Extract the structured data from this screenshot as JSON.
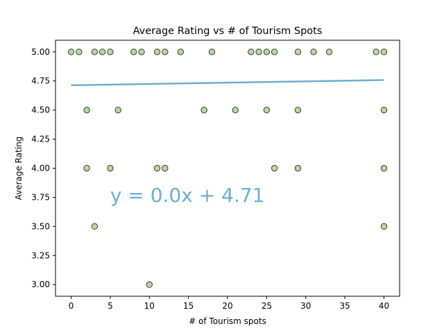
{
  "chart_data": {
    "type": "scatter",
    "title": "Average Rating vs # of Tourism Spots",
    "xlabel": "# of Tourism spots",
    "ylabel": "Average Rating",
    "xlim": [
      -2,
      42
    ],
    "ylim": [
      2.9,
      5.1
    ],
    "xticks": [
      0,
      5,
      10,
      15,
      20,
      25,
      30,
      35,
      40
    ],
    "yticks": [
      3.0,
      3.25,
      3.5,
      3.75,
      4.0,
      4.25,
      4.5,
      4.75,
      5.0
    ],
    "grid": false,
    "point_color": "#b5d99c",
    "point_edge_color": "#3a3a3a",
    "line_color": "#6baed6",
    "points": [
      {
        "x": 0,
        "y": 5.0
      },
      {
        "x": 1,
        "y": 5.0
      },
      {
        "x": 3,
        "y": 5.0
      },
      {
        "x": 4,
        "y": 5.0
      },
      {
        "x": 5,
        "y": 5.0
      },
      {
        "x": 8,
        "y": 5.0
      },
      {
        "x": 9,
        "y": 5.0
      },
      {
        "x": 11,
        "y": 5.0
      },
      {
        "x": 12,
        "y": 5.0
      },
      {
        "x": 14,
        "y": 5.0
      },
      {
        "x": 18,
        "y": 5.0
      },
      {
        "x": 23,
        "y": 5.0
      },
      {
        "x": 24,
        "y": 5.0
      },
      {
        "x": 25,
        "y": 5.0
      },
      {
        "x": 26,
        "y": 5.0
      },
      {
        "x": 29,
        "y": 5.0
      },
      {
        "x": 31,
        "y": 5.0
      },
      {
        "x": 33,
        "y": 5.0
      },
      {
        "x": 39,
        "y": 5.0
      },
      {
        "x": 40,
        "y": 5.0
      },
      {
        "x": 2,
        "y": 4.5
      },
      {
        "x": 6,
        "y": 4.5
      },
      {
        "x": 17,
        "y": 4.5
      },
      {
        "x": 21,
        "y": 4.5
      },
      {
        "x": 25,
        "y": 4.5
      },
      {
        "x": 29,
        "y": 4.5
      },
      {
        "x": 40,
        "y": 4.5
      },
      {
        "x": 2,
        "y": 4.0
      },
      {
        "x": 5,
        "y": 4.0
      },
      {
        "x": 11,
        "y": 4.0
      },
      {
        "x": 12,
        "y": 4.0
      },
      {
        "x": 26,
        "y": 4.0
      },
      {
        "x": 29,
        "y": 4.0
      },
      {
        "x": 40,
        "y": 4.0
      },
      {
        "x": 3,
        "y": 3.5
      },
      {
        "x": 40,
        "y": 3.5
      },
      {
        "x": 10,
        "y": 3.0
      }
    ],
    "regression": {
      "x_start": 0,
      "y_start": 4.713,
      "x_end": 40,
      "y_end": 4.758,
      "equation": "y = 0.0x + 4.71",
      "equation_x": 5,
      "equation_y": 3.77
    }
  }
}
